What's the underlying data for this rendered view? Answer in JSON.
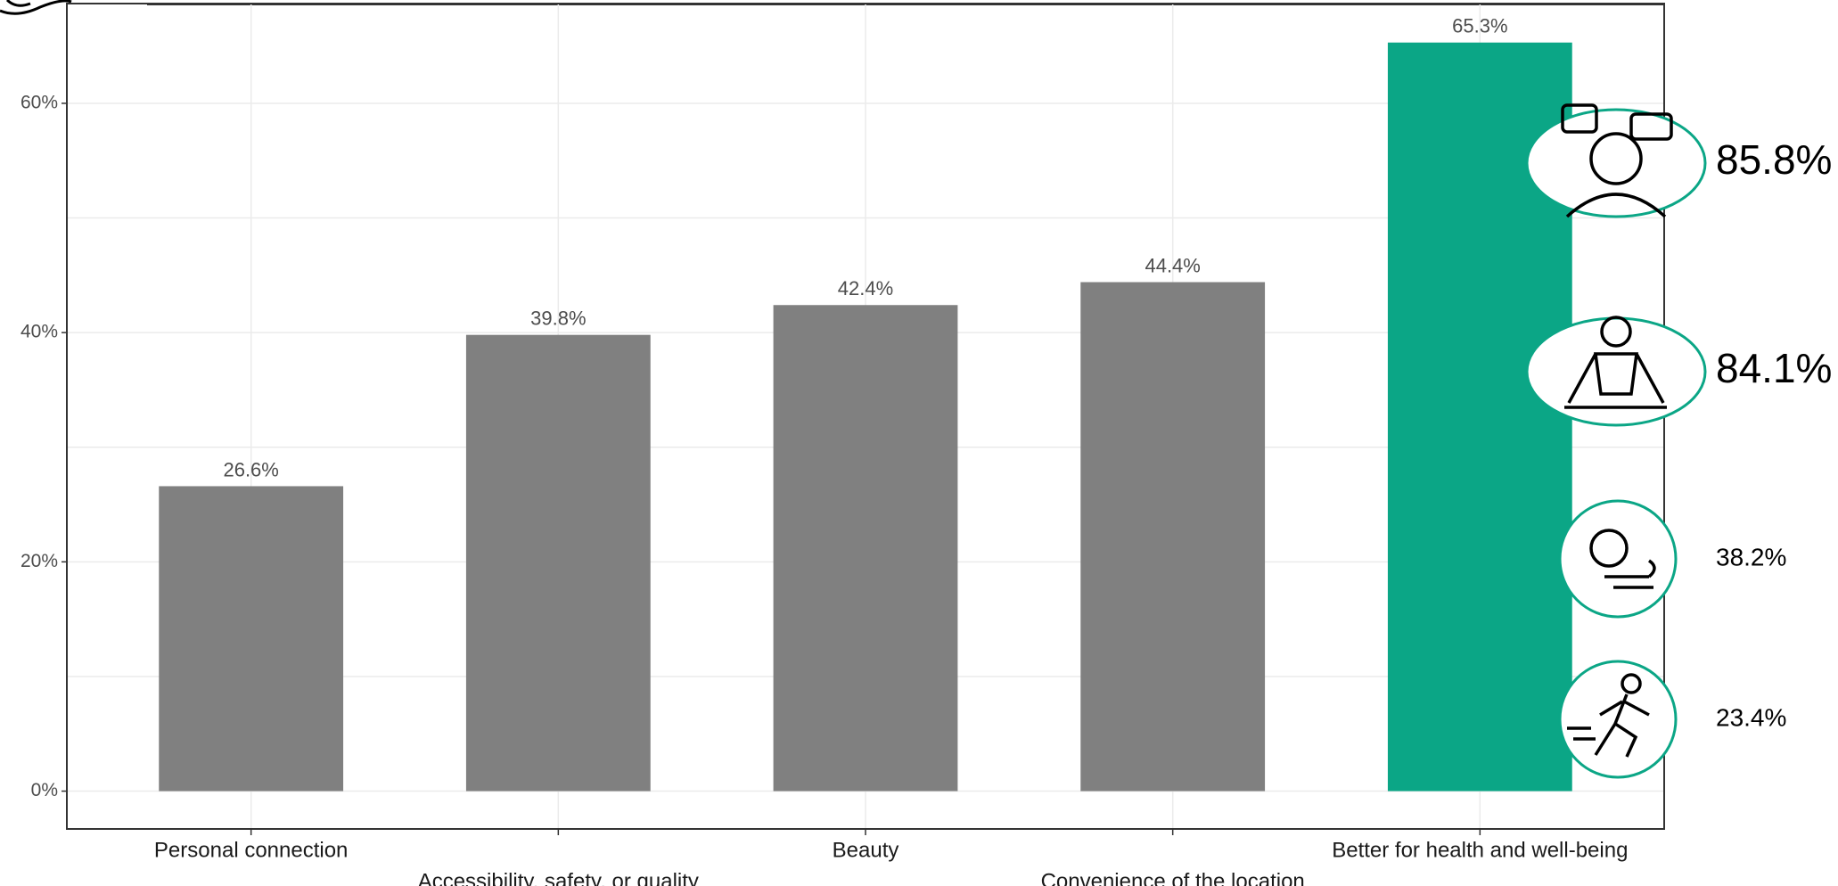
{
  "chart_data": {
    "type": "bar",
    "categories": [
      "Personal connection",
      "Accessibility, safety, or quality",
      "Beauty",
      "Convenience of the location",
      "Better for health and well-being"
    ],
    "values": [
      26.6,
      39.8,
      42.4,
      44.4,
      65.3
    ],
    "value_labels": [
      "26.6%",
      "39.8%",
      "42.4%",
      "44.4%",
      "65.3%"
    ],
    "colors": [
      "#808080",
      "#808080",
      "#808080",
      "#808080",
      "#0ba686"
    ],
    "ylim": [
      -3.3,
      68.7
    ],
    "yticks": [
      {
        "value": 0,
        "label": "0%"
      },
      {
        "value": 20,
        "label": "20%"
      },
      {
        "value": 40,
        "label": "40%"
      },
      {
        "value": 60,
        "label": "60%"
      }
    ],
    "grid": true,
    "side_values": [
      85.8,
      84.1,
      38.2,
      23.4
    ],
    "side_value_labels": [
      "85.8%",
      "84.1%",
      "38.2%",
      "23.4%"
    ],
    "side_color": "#0ba686"
  }
}
